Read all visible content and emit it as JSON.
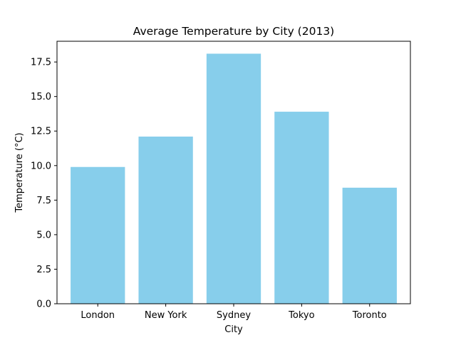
{
  "chart_data": {
    "type": "bar",
    "title": "Average Temperature by City (2013)",
    "xlabel": "City",
    "ylabel": "Temperature (°C)",
    "categories": [
      "London",
      "New York",
      "Sydney",
      "Tokyo",
      "Toronto"
    ],
    "values": [
      9.9,
      12.1,
      18.1,
      13.9,
      8.4
    ],
    "ylim": [
      0,
      19.0
    ],
    "yticks": [
      0.0,
      2.5,
      5.0,
      7.5,
      10.0,
      12.5,
      15.0,
      17.5
    ],
    "ytick_labels": [
      "0.0",
      "2.5",
      "5.0",
      "7.5",
      "10.0",
      "12.5",
      "15.0",
      "17.5"
    ],
    "bar_color": "#87CEEB",
    "grid": false,
    "legend": "none"
  }
}
